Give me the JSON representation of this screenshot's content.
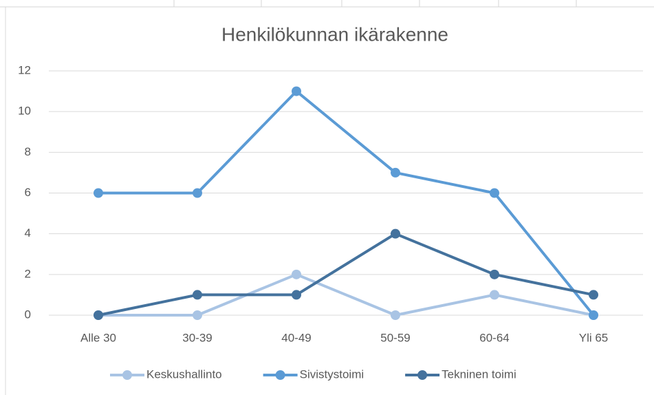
{
  "chart_data": {
    "type": "line",
    "title": "Henkilökunnan ikärakenne",
    "categories": [
      "Alle 30",
      "30-39",
      "40-49",
      "50-59",
      "60-64",
      "Yli 65"
    ],
    "series": [
      {
        "name": "Keskushallinto",
        "color": "#a9c4e4",
        "values": [
          0,
          0,
          2,
          0,
          1,
          0
        ]
      },
      {
        "name": "Sivistystoimi",
        "color": "#5b9bd5",
        "values": [
          6,
          6,
          11,
          7,
          6,
          0
        ]
      },
      {
        "name": "Tekninen toimi",
        "color": "#44729d",
        "values": [
          0,
          1,
          1,
          4,
          2,
          1
        ]
      }
    ],
    "ylim": [
      0,
      12
    ],
    "yticks": [
      0,
      2,
      4,
      6,
      8,
      10,
      12
    ],
    "grid": true,
    "legend": "bottom"
  }
}
